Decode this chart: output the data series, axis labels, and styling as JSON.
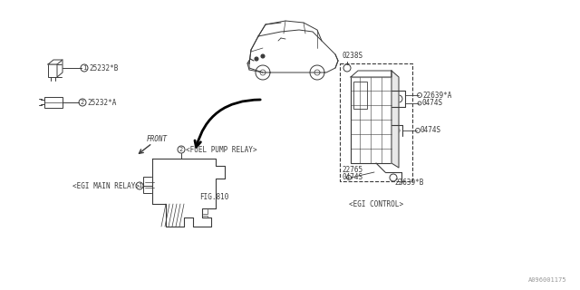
{
  "bg_color": "#ffffff",
  "line_color": "#3a3a3a",
  "part_number_bottom": "A096001175",
  "relay1_label": "25232*B",
  "relay2_label": "25232*A",
  "egi_main_label": "<EGI MAIN RELAY>",
  "fuel_pump_label": "<FUEL PUMP RELAY>",
  "fig_label": "FIG.810",
  "front_label": "FRONT",
  "egi_control_label": "<EGI CONTROL>",
  "label_0238s": "0238S",
  "label_22639a": "22639*A",
  "label_0474s": "0474S",
  "label_22765": "22765",
  "label_22639b": "22639*B",
  "num1": "1",
  "num2": "2"
}
